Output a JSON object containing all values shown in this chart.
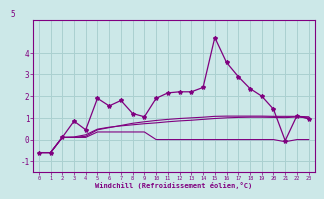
{
  "x": [
    0,
    1,
    2,
    3,
    4,
    5,
    6,
    7,
    8,
    9,
    10,
    11,
    12,
    13,
    14,
    15,
    16,
    17,
    18,
    19,
    20,
    21,
    22,
    23
  ],
  "line1": [
    -0.6,
    -0.6,
    0.1,
    0.85,
    0.45,
    1.9,
    1.55,
    1.8,
    1.2,
    1.05,
    1.9,
    2.15,
    2.2,
    2.2,
    2.4,
    4.7,
    3.55,
    2.9,
    2.35,
    2.0,
    1.4,
    -0.05,
    1.1,
    0.95
  ],
  "line2": [
    -0.6,
    -0.6,
    0.1,
    0.1,
    0.1,
    0.35,
    0.35,
    0.35,
    0.35,
    0.35,
    0.0,
    0.0,
    0.0,
    0.0,
    0.0,
    0.0,
    0.0,
    0.0,
    0.0,
    0.0,
    0.0,
    -0.1,
    0.0,
    0.0
  ],
  "line3": [
    -0.6,
    -0.6,
    0.1,
    0.1,
    0.15,
    0.45,
    0.55,
    0.65,
    0.75,
    0.82,
    0.88,
    0.93,
    0.97,
    1.0,
    1.03,
    1.07,
    1.08,
    1.08,
    1.08,
    1.08,
    1.07,
    1.07,
    1.07,
    1.05
  ],
  "line4": [
    -0.6,
    -0.6,
    0.1,
    0.12,
    0.22,
    0.48,
    0.57,
    0.63,
    0.68,
    0.73,
    0.77,
    0.82,
    0.86,
    0.89,
    0.93,
    0.97,
    1.0,
    1.02,
    1.03,
    1.03,
    1.02,
    1.01,
    1.04,
    1.0
  ],
  "color": "#800080",
  "bg_color": "#cce8e8",
  "grid_color": "#aad0d0",
  "xlabel": "Windchill (Refroidissement éolien,°C)",
  "ylim": [
    -1.5,
    5.5
  ],
  "xlim": [
    -0.5,
    23.5
  ],
  "yticks": [
    -1,
    0,
    1,
    2,
    3,
    4
  ],
  "ytick_labels": [
    "-1",
    "0",
    "1",
    "2",
    "3",
    "4"
  ],
  "xticks": [
    0,
    1,
    2,
    3,
    4,
    5,
    6,
    7,
    8,
    9,
    10,
    11,
    12,
    13,
    14,
    15,
    16,
    17,
    18,
    19,
    20,
    21,
    22,
    23
  ],
  "top_label": "5"
}
